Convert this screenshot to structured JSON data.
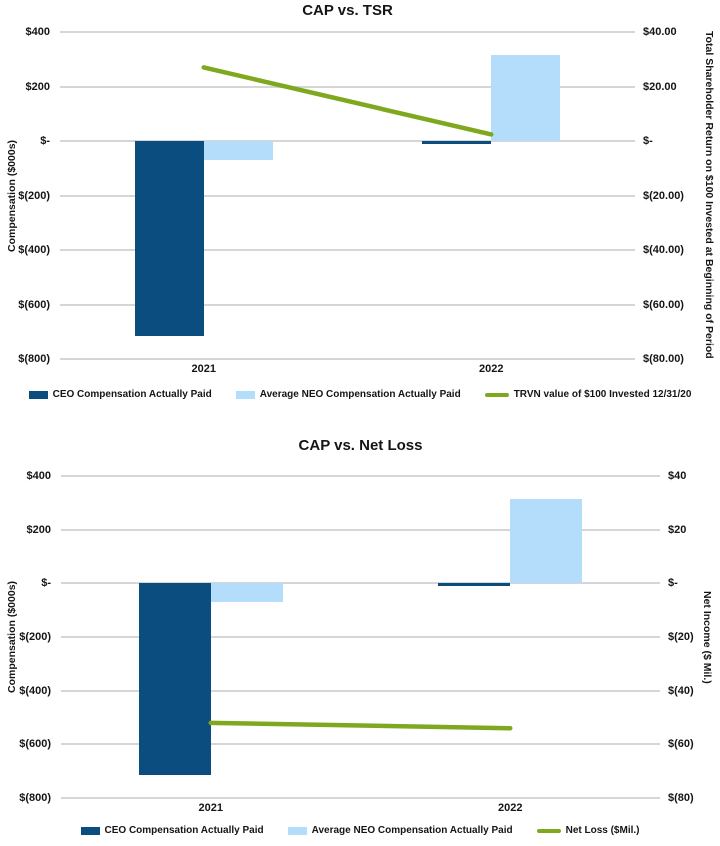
{
  "colors": {
    "ceo_bar": "#0B4D7E",
    "neo_bar": "#B4DDFB",
    "line": "#7FA81E",
    "gridline": "#D6D6D6",
    "text": "#151515"
  },
  "chart_data": [
    {
      "type": "bar+line",
      "title": "CAP vs. TSR",
      "categories": [
        "2021",
        "2022"
      ],
      "grid": true,
      "legend_position": "bottom",
      "left_axis": {
        "title": "Compensation ($000s)",
        "range": [
          400,
          -800
        ],
        "ticks": [
          {
            "label": "$400",
            "value": 400
          },
          {
            "label": "$200",
            "value": 200
          },
          {
            "label": "$-",
            "value": 0
          },
          {
            "label": "$(200)",
            "value": -200
          },
          {
            "label": "$(400)",
            "value": -400
          },
          {
            "label": "$(600)",
            "value": -600
          },
          {
            "label": "$(800)",
            "value": -800
          }
        ]
      },
      "right_axis": {
        "title": "Total Shareholder Return on $100 Invested at Beginning of Period",
        "range": [
          40,
          -80
        ],
        "ticks": [
          "$40.00",
          "$20.00",
          "$-",
          "$(20.00)",
          "$(40.00)",
          "$(60.00)",
          "$(80.00)"
        ]
      },
      "bar_series": [
        {
          "name": "CEO Compensation Actually Paid",
          "color": "#0B4D7E",
          "axis": "left",
          "values": [
            -715,
            -10
          ]
        },
        {
          "name": "Average NEO Compensation Actually Paid",
          "color": "#B4DDFB",
          "axis": "left",
          "values": [
            -70,
            315
          ]
        }
      ],
      "line_series": {
        "name": "TRVN value of $100 Invested 12/31/20",
        "color": "#7FA81E",
        "axis": "right",
        "values": [
          27.0,
          2.4
        ]
      }
    },
    {
      "type": "bar+line",
      "title": "CAP vs. Net Loss",
      "categories": [
        "2021",
        "2022"
      ],
      "grid": true,
      "legend_position": "bottom",
      "left_axis": {
        "title": "Compensation ($000s)",
        "range": [
          400,
          -800
        ],
        "ticks": [
          {
            "label": "$400",
            "value": 400
          },
          {
            "label": "$200",
            "value": 200
          },
          {
            "label": "$-",
            "value": 0
          },
          {
            "label": "$(200)",
            "value": -200
          },
          {
            "label": "$(400)",
            "value": -400
          },
          {
            "label": "$(600)",
            "value": -600
          },
          {
            "label": "$(800)",
            "value": -800
          }
        ]
      },
      "right_axis": {
        "title": "Net Income ($ Mil.)",
        "range": [
          40,
          -80
        ],
        "ticks": [
          "$40",
          "$20",
          "$-",
          "$(20)",
          "$(40)",
          "$(60)",
          "$(80)"
        ]
      },
      "bar_series": [
        {
          "name": "CEO Compensation Actually Paid",
          "color": "#0B4D7E",
          "axis": "left",
          "values": [
            -715,
            -10
          ]
        },
        {
          "name": "Average NEO Compensation Actually Paid",
          "color": "#B4DDFB",
          "axis": "left",
          "values": [
            -70,
            315
          ]
        }
      ],
      "line_series": {
        "name": "Net Loss ($Mil.)",
        "color": "#7FA81E",
        "axis": "right",
        "values": [
          -52,
          -54
        ]
      }
    }
  ]
}
